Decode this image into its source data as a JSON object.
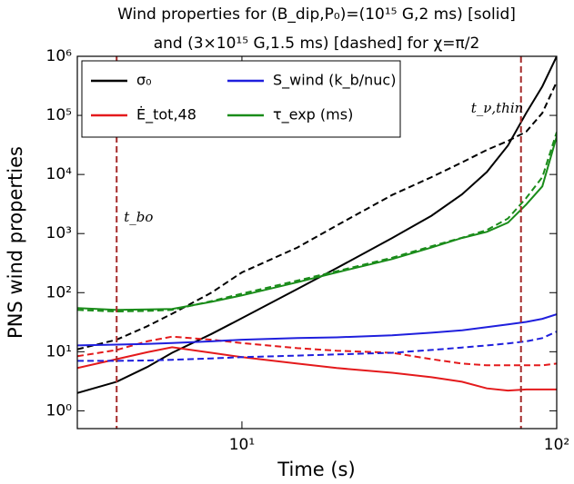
{
  "chart_data": {
    "type": "line",
    "title": [
      "Wind properties for (B_dip,P₀)=(10¹⁵ G,2 ms) [solid]",
      "and (3×10¹⁵ G,1.5 ms) [dashed] for χ=π/2"
    ],
    "x_label": "Time (s)",
    "y_label": "PNS wind properties",
    "x_log": true,
    "y_log": true,
    "xlim": [
      3,
      100
    ],
    "ylim": [
      0.5,
      1000000
    ],
    "xticks": [
      {
        "value": 10,
        "label": "10¹"
      },
      {
        "value": 100,
        "label": "10²"
      }
    ],
    "yticks": [
      {
        "value": 1,
        "label": "10⁰"
      },
      {
        "value": 10,
        "label": "10¹"
      },
      {
        "value": 100,
        "label": "10²"
      },
      {
        "value": 1000,
        "label": "10³"
      },
      {
        "value": 10000,
        "label": "10⁴"
      },
      {
        "value": 100000,
        "label": "10⁵"
      },
      {
        "value": 1000000,
        "label": "10⁶"
      }
    ],
    "legend": "upper left",
    "x": [
      3,
      4,
      5,
      6,
      8,
      10,
      15,
      20,
      30,
      40,
      50,
      60,
      70,
      80,
      90,
      100
    ],
    "series": [
      {
        "name": "σ₀",
        "color": "#000000",
        "values": [
          2,
          3.1,
          5.5,
          9.6,
          20,
          37,
          115,
          260,
          840,
          2000,
          4600,
          11000,
          31000,
          110000,
          310000,
          1000000
        ],
        "values_dashed": [
          11,
          16,
          27,
          44,
          100,
          220,
          580,
          1370,
          4500,
          9000,
          16000,
          26000,
          37000,
          53000,
          110000,
          370000
        ]
      },
      {
        "name": "Ė_tot,48",
        "color": "#e41a1c",
        "values": [
          5.3,
          7.5,
          9.8,
          11.9,
          9.6,
          8.1,
          6.3,
          5.3,
          4.4,
          3.7,
          3.1,
          2.4,
          2.2,
          2.3,
          2.3,
          2.3
        ],
        "values_dashed": [
          8.4,
          10.7,
          15,
          18,
          16,
          14,
          11.5,
          10.4,
          9.6,
          7.5,
          6.3,
          5.9,
          5.9,
          5.9,
          5.9,
          6.3
        ]
      },
      {
        "name": "S_wind (k_b/nuc)",
        "color": "#1f1fdd",
        "values": [
          12.8,
          13.2,
          13.6,
          14,
          15,
          16,
          17,
          17.5,
          19,
          21,
          23,
          26,
          29,
          32,
          36,
          43
        ],
        "values_dashed": [
          7,
          7,
          7.1,
          7.3,
          7.7,
          8.1,
          8.6,
          9,
          9.6,
          10.7,
          11.8,
          12.8,
          13.8,
          15,
          17,
          22
        ]
      },
      {
        "name": "τ_exp (ms)",
        "color": "#1a8c1a",
        "values": [
          55,
          51,
          52,
          53,
          70,
          90,
          150,
          220,
          370,
          580,
          840,
          1070,
          1530,
          3100,
          6300,
          44000
        ],
        "values_dashed": [
          51,
          48,
          49,
          51,
          72,
          96,
          160,
          230,
          390,
          610,
          850,
          1150,
          1800,
          4000,
          9000,
          52000
        ]
      }
    ],
    "annotations": [
      {
        "text": "t_bo",
        "x": 4
      },
      {
        "text": "t_ν,thin",
        "x": 77
      }
    ]
  }
}
